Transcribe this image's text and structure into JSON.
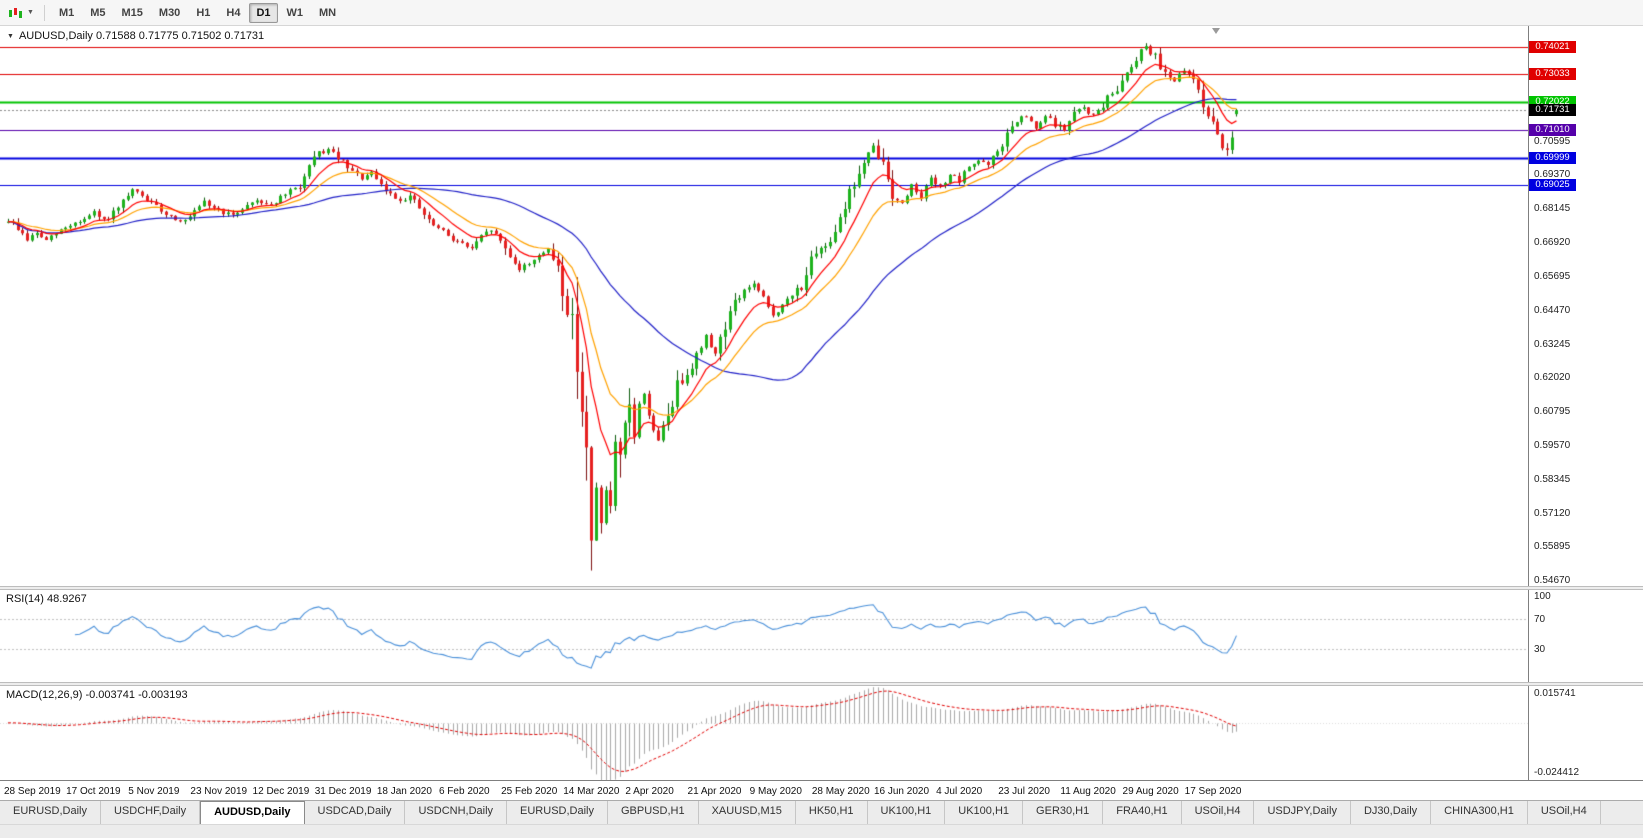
{
  "icons": {
    "dropdown_caret": "▼"
  },
  "toolbar": {
    "timeframes": [
      {
        "label": "M1",
        "active": false
      },
      {
        "label": "M5",
        "active": false
      },
      {
        "label": "M15",
        "active": false
      },
      {
        "label": "M30",
        "active": false
      },
      {
        "label": "H1",
        "active": false
      },
      {
        "label": "H4",
        "active": false
      },
      {
        "label": "D1",
        "active": true
      },
      {
        "label": "W1",
        "active": false
      },
      {
        "label": "MN",
        "active": false
      }
    ]
  },
  "header": {
    "title_line": "AUDUSD,Daily  0.71588 0.71775 0.71502 0.71731"
  },
  "tabs": [
    {
      "label": "EURUSD,Daily",
      "active": false
    },
    {
      "label": "USDCHF,Daily",
      "active": false
    },
    {
      "label": "AUDUSD,Daily",
      "active": true
    },
    {
      "label": "USDCAD,Daily",
      "active": false
    },
    {
      "label": "USDCNH,Daily",
      "active": false
    },
    {
      "label": "EURUSD,Daily",
      "active": false
    },
    {
      "label": "GBPUSD,H1",
      "active": false
    },
    {
      "label": "XAUUSD,M15",
      "active": false
    },
    {
      "label": "HK50,H1",
      "active": false
    },
    {
      "label": "UK100,H1",
      "active": false
    },
    {
      "label": "UK100,H1",
      "active": false
    },
    {
      "label": "GER30,H1",
      "active": false
    },
    {
      "label": "FRA40,H1",
      "active": false
    },
    {
      "label": "USOil,H4",
      "active": false
    },
    {
      "label": "USDJPY,Daily",
      "active": false
    },
    {
      "label": "DJ30,Daily",
      "active": false
    },
    {
      "label": "CHINA300,H1",
      "active": false
    },
    {
      "label": "USOil,H4",
      "active": false
    }
  ],
  "chart_data": {
    "type": "candlestick",
    "symbol": "AUDUSD",
    "period": "Daily",
    "last_bar": {
      "open": 0.71588,
      "high": 0.71775,
      "low": 0.71502,
      "close": 0.71731
    },
    "bars": 258,
    "bars_per_label": 13,
    "seed": 9,
    "price_range": [
      0.545,
      0.7478
    ],
    "y_axis_labels": [
      "0.70595",
      "0.69370",
      "0.68145",
      "0.66920",
      "0.65695",
      "0.64470",
      "0.63245",
      "0.62020",
      "0.60795",
      "0.59570",
      "0.58345",
      "0.57120",
      "0.55895",
      "0.54670"
    ],
    "x_labels": [
      "28 Sep 2019",
      "17 Oct 2019",
      "5 Nov 2019",
      "23 Nov 2019",
      "12 Dec 2019",
      "31 Dec 2019",
      "18 Jan 2020",
      "6 Feb 2020",
      "25 Feb 2020",
      "14 Mar 2020",
      "2 Apr 2020",
      "21 Apr 2020",
      "9 May 2020",
      "28 May 2020",
      "16 Jun 2020",
      "4 Jul 2020",
      "23 Jul 2020",
      "11 Aug 2020",
      "29 Aug 2020",
      "17 Sep 2020"
    ],
    "horizontal_lines": [
      {
        "value": 0.74021,
        "label": "0.74021",
        "color": "#E00000",
        "width": 1
      },
      {
        "value": 0.73033,
        "label": "0.73033",
        "color": "#E00000",
        "width": 1
      },
      {
        "value": 0.72022,
        "label": "0.72022",
        "color": "#00C400",
        "width": 2
      },
      {
        "value": 0.7101,
        "label": "0.71010",
        "color": "#5500AA",
        "width": 1
      },
      {
        "value": 0.69999,
        "label": "0.69999",
        "color": "#0000E0",
        "width": 2
      },
      {
        "value": 0.69025,
        "label": "0.69025",
        "color": "#0000E0",
        "width": 1
      }
    ],
    "bid": {
      "label": "0.71731",
      "value": 0.71731,
      "box_color": "#000000",
      "line_color": "#8a8a8a"
    },
    "colors": {
      "up_fill": "#1DB31D",
      "up_stroke": "#0E5E0E",
      "down_fill": "#E62020",
      "down_stroke": "#7E1010",
      "background": "#FFFFFF"
    },
    "moving_averages": [
      {
        "type": "sma",
        "period": 45,
        "color": "#2020C8"
      },
      {
        "type": "ema",
        "period": 18,
        "color": "#FFA200"
      },
      {
        "type": "ema",
        "period": 9,
        "color": "#FF0000"
      }
    ],
    "rsi": {
      "label": "RSI(14) 48.9267",
      "period": 14,
      "value": 48.9267,
      "color": "#4A90D9",
      "levels": [
        70,
        30
      ],
      "scale": [
        {
          "label": "100",
          "value": 100
        },
        {
          "label": "70",
          "value": 70
        },
        {
          "label": "30",
          "value": 30
        }
      ]
    },
    "macd": {
      "label": "MACD(12,26,9) -0.003741 -0.003193",
      "fast": 12,
      "slow": 26,
      "signal": 9,
      "values": [
        -0.003741,
        -0.003193
      ],
      "histogram_color": "#A8A8A8",
      "signal_color": "#E00000",
      "scale": {
        "top": {
          "label": "0.015741",
          "value": 0.015741
        },
        "bottom": {
          "label": "-0.024412",
          "value": -0.024412
        }
      }
    },
    "spike_low": {
      "index": 122,
      "low": 0.5506
    },
    "spike_high": {
      "index": 238,
      "high": 0.7414
    },
    "price_anchors": [
      [
        0,
        0.6775
      ],
      [
        2,
        0.6745
      ],
      [
        4,
        0.6705
      ],
      [
        6,
        0.6728
      ],
      [
        8,
        0.67
      ],
      [
        11,
        0.6738
      ],
      [
        13,
        0.6758
      ],
      [
        16,
        0.6778
      ],
      [
        18,
        0.68
      ],
      [
        20,
        0.6772
      ],
      [
        23,
        0.6812
      ],
      [
        26,
        0.6882
      ],
      [
        28,
        0.6862
      ],
      [
        31,
        0.6822
      ],
      [
        34,
        0.6788
      ],
      [
        37,
        0.677
      ],
      [
        39,
        0.68
      ],
      [
        41,
        0.6838
      ],
      [
        44,
        0.6812
      ],
      [
        47,
        0.6788
      ],
      [
        49,
        0.682
      ],
      [
        52,
        0.6848
      ],
      [
        55,
        0.683
      ],
      [
        58,
        0.6868
      ],
      [
        61,
        0.69
      ],
      [
        63,
        0.696
      ],
      [
        65,
        0.7018
      ],
      [
        67,
        0.7028
      ],
      [
        69,
        0.7002
      ],
      [
        71,
        0.696
      ],
      [
        74,
        0.6928
      ],
      [
        76,
        0.6942
      ],
      [
        78,
        0.6898
      ],
      [
        80,
        0.6868
      ],
      [
        82,
        0.6848
      ],
      [
        84,
        0.6862
      ],
      [
        86,
        0.6818
      ],
      [
        88,
        0.6768
      ],
      [
        91,
        0.6732
      ],
      [
        93,
        0.6708
      ],
      [
        95,
        0.6688
      ],
      [
        97,
        0.6672
      ],
      [
        99,
        0.6712
      ],
      [
        101,
        0.6742
      ],
      [
        103,
        0.6698
      ],
      [
        105,
        0.6648
      ],
      [
        107,
        0.6598
      ],
      [
        109,
        0.6618
      ],
      [
        111,
        0.6652
      ],
      [
        113,
        0.6662
      ],
      [
        115,
        0.6612
      ],
      [
        117,
        0.6452
      ],
      [
        119,
        0.6312
      ],
      [
        120,
        0.6122
      ],
      [
        121,
        0.5912
      ],
      [
        122,
        0.5568
      ],
      [
        123,
        0.5802
      ],
      [
        124,
        0.5702
      ],
      [
        125,
        0.5782
      ],
      [
        126,
        0.5742
      ],
      [
        127,
        0.5932
      ],
      [
        128,
        0.5872
      ],
      [
        129,
        0.6032
      ],
      [
        130,
        0.6092
      ],
      [
        131,
        0.5992
      ],
      [
        132,
        0.6112
      ],
      [
        133,
        0.6142
      ],
      [
        135,
        0.6022
      ],
      [
        136,
        0.5972
      ],
      [
        138,
        0.6072
      ],
      [
        140,
        0.6172
      ],
      [
        142,
        0.6232
      ],
      [
        144,
        0.6282
      ],
      [
        146,
        0.6352
      ],
      [
        148,
        0.6292
      ],
      [
        150,
        0.6402
      ],
      [
        152,
        0.6472
      ],
      [
        154,
        0.6522
      ],
      [
        156,
        0.6542
      ],
      [
        158,
        0.6482
      ],
      [
        160,
        0.6432
      ],
      [
        162,
        0.6462
      ],
      [
        164,
        0.6502
      ],
      [
        166,
        0.6542
      ],
      [
        168,
        0.6622
      ],
      [
        170,
        0.6662
      ],
      [
        172,
        0.6712
      ],
      [
        174,
        0.6792
      ],
      [
        176,
        0.6872
      ],
      [
        178,
        0.6942
      ],
      [
        180,
        0.7012
      ],
      [
        181,
        0.7038
      ],
      [
        183,
        0.6972
      ],
      [
        185,
        0.6872
      ],
      [
        187,
        0.6832
      ],
      [
        189,
        0.6902
      ],
      [
        191,
        0.6862
      ],
      [
        193,
        0.6922
      ],
      [
        195,
        0.6892
      ],
      [
        197,
        0.6942
      ],
      [
        199,
        0.6912
      ],
      [
        201,
        0.6972
      ],
      [
        203,
        0.6992
      ],
      [
        205,
        0.6972
      ],
      [
        207,
        0.7022
      ],
      [
        209,
        0.7082
      ],
      [
        211,
        0.7132
      ],
      [
        213,
        0.7152
      ],
      [
        215,
        0.7102
      ],
      [
        217,
        0.7152
      ],
      [
        219,
        0.7122
      ],
      [
        221,
        0.7102
      ],
      [
        223,
        0.7162
      ],
      [
        225,
        0.7182
      ],
      [
        227,
        0.7152
      ],
      [
        229,
        0.7192
      ],
      [
        231,
        0.7232
      ],
      [
        233,
        0.7282
      ],
      [
        235,
        0.7342
      ],
      [
        237,
        0.7392
      ],
      [
        238,
        0.7408
      ],
      [
        240,
        0.7362
      ],
      [
        242,
        0.7312
      ],
      [
        244,
        0.7282
      ],
      [
        246,
        0.7312
      ],
      [
        248,
        0.7288
      ],
      [
        250,
        0.7208
      ],
      [
        252,
        0.7108
      ],
      [
        254,
        0.7038
      ],
      [
        255,
        0.7042
      ],
      [
        256,
        0.7092
      ],
      [
        257,
        0.7173
      ]
    ]
  }
}
